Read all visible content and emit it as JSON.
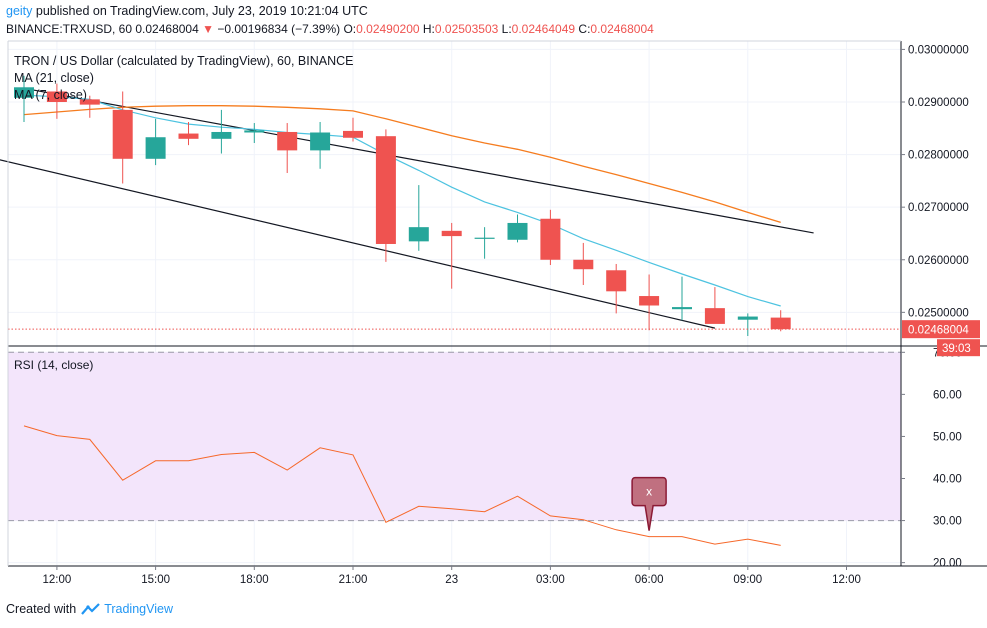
{
  "header": {
    "username": "geity",
    "published_text": "published on TradingView.com, July 23, 2019 10:21:04 UTC",
    "symbol_line": "BINANCE:TRXUSD, 60",
    "last_price": "0.02468004",
    "change_arrow": "▼",
    "change": "−0.00196834 (−7.39%)",
    "o_label": "O:",
    "o_value": "0.02490200",
    "h_label": "H:",
    "h_value": "0.02503503",
    "l_label": "L:",
    "l_value": "0.02464049",
    "c_label": "C:",
    "c_value": "0.02468004"
  },
  "footer": {
    "created_with": "Created with",
    "brand": "TradingView"
  },
  "colors": {
    "up": "#26a69a",
    "down": "#ef5350",
    "ma21": "#f57c1f",
    "ma7": "#4dc3e0",
    "rsi_line": "#f6682a",
    "rsi_band": "#f3e5fb",
    "price_tag": "#ef5350",
    "marker": "#c07080"
  },
  "chart_data": [
    {
      "type": "candlestick",
      "title": "TRON / US Dollar (calculated by TradingView), 60, BINANCE",
      "legend": [
        "MA (21, close)",
        "MA (7, close)"
      ],
      "x_tick_labels": [
        "12:00",
        "15:00",
        "18:00",
        "21:00",
        "23",
        "03:00",
        "06:00",
        "09:00",
        "12:00"
      ],
      "y_tick_labels": [
        "0.03000000",
        "0.02900000",
        "0.02800000",
        "0.02700000",
        "0.02600000",
        "0.02500000"
      ],
      "ylim": [
        0.02436,
        0.03016
      ],
      "last_price_label": "0.02468004",
      "countdown": "39:03",
      "grid": true,
      "candles": [
        {
          "o": 0.02908,
          "h": 0.0295,
          "l": 0.02862,
          "c": 0.02928
        },
        {
          "o": 0.0292,
          "h": 0.02935,
          "l": 0.02868,
          "c": 0.029
        },
        {
          "o": 0.02905,
          "h": 0.02912,
          "l": 0.0287,
          "c": 0.02895
        },
        {
          "o": 0.02885,
          "h": 0.0292,
          "l": 0.02745,
          "c": 0.02792
        },
        {
          "o": 0.02792,
          "h": 0.02868,
          "l": 0.0278,
          "c": 0.02833
        },
        {
          "o": 0.0284,
          "h": 0.02862,
          "l": 0.02818,
          "c": 0.0283
        },
        {
          "o": 0.0283,
          "h": 0.02885,
          "l": 0.02802,
          "c": 0.02843
        },
        {
          "o": 0.02842,
          "h": 0.0286,
          "l": 0.02822,
          "c": 0.02846
        },
        {
          "o": 0.02843,
          "h": 0.0286,
          "l": 0.02765,
          "c": 0.02808
        },
        {
          "o": 0.02808,
          "h": 0.02862,
          "l": 0.02773,
          "c": 0.02842
        },
        {
          "o": 0.02845,
          "h": 0.0287,
          "l": 0.02825,
          "c": 0.02832
        },
        {
          "o": 0.02835,
          "h": 0.02848,
          "l": 0.02596,
          "c": 0.0263
        },
        {
          "o": 0.02635,
          "h": 0.02742,
          "l": 0.02617,
          "c": 0.02662
        },
        {
          "o": 0.02655,
          "h": 0.0267,
          "l": 0.02545,
          "c": 0.02645
        },
        {
          "o": 0.0264,
          "h": 0.02662,
          "l": 0.02602,
          "c": 0.02642
        },
        {
          "o": 0.02638,
          "h": 0.02686,
          "l": 0.02633,
          "c": 0.0267
        },
        {
          "o": 0.02678,
          "h": 0.02695,
          "l": 0.0259,
          "c": 0.026
        },
        {
          "o": 0.026,
          "h": 0.02632,
          "l": 0.02552,
          "c": 0.02582
        },
        {
          "o": 0.0258,
          "h": 0.02592,
          "l": 0.02498,
          "c": 0.0254
        },
        {
          "o": 0.02531,
          "h": 0.02572,
          "l": 0.02466,
          "c": 0.02513
        },
        {
          "o": 0.02506,
          "h": 0.02568,
          "l": 0.02485,
          "c": 0.0251
        },
        {
          "o": 0.02508,
          "h": 0.02548,
          "l": 0.02479,
          "c": 0.02478
        },
        {
          "o": 0.02486,
          "h": 0.02498,
          "l": 0.02455,
          "c": 0.02492
        },
        {
          "o": 0.0249,
          "h": 0.02504,
          "l": 0.02464,
          "c": 0.02468
        }
      ],
      "ma21": [
        0.02876,
        0.02881,
        0.02886,
        0.0289,
        0.02892,
        0.02893,
        0.02893,
        0.02892,
        0.0289,
        0.02887,
        0.02883,
        0.02868,
        0.02852,
        0.02836,
        0.02822,
        0.0281,
        0.02795,
        0.02778,
        0.02762,
        0.02745,
        0.02728,
        0.0271,
        0.0269,
        0.02671
      ],
      "ma7": [
        0.02913,
        0.0291,
        0.02905,
        0.02885,
        0.0287,
        0.02858,
        0.02852,
        0.02848,
        0.02842,
        0.02838,
        0.02833,
        0.028,
        0.0277,
        0.02738,
        0.0271,
        0.0269,
        0.02668,
        0.0264,
        0.02618,
        0.02595,
        0.02573,
        0.02552,
        0.0253,
        0.02512
      ],
      "trend_lines": [
        {
          "from": [
            0,
            0.02926
          ],
          "to": [
            24,
            0.02651
          ]
        },
        {
          "from": [
            -1,
            0.02794
          ],
          "to": [
            21,
            0.0247
          ]
        }
      ]
    },
    {
      "type": "line",
      "title": "RSI (14, close)",
      "y_tick_labels": [
        "70.00",
        "60.00",
        "50.00",
        "40.00",
        "30.00",
        "20.00"
      ],
      "ylim": [
        19.2,
        71.5
      ],
      "band": [
        30,
        70
      ],
      "values": [
        52.5,
        50.2,
        49.3,
        39.6,
        44.2,
        44.2,
        45.7,
        46.2,
        42.0,
        47.3,
        45.6,
        29.6,
        33.4,
        32.8,
        32.1,
        35.8,
        31.1,
        30.2,
        27.8,
        26.2,
        26.2,
        24.4,
        25.6,
        24.1
      ],
      "marker": {
        "index": 19,
        "value": 26.9,
        "label": "x"
      }
    }
  ]
}
